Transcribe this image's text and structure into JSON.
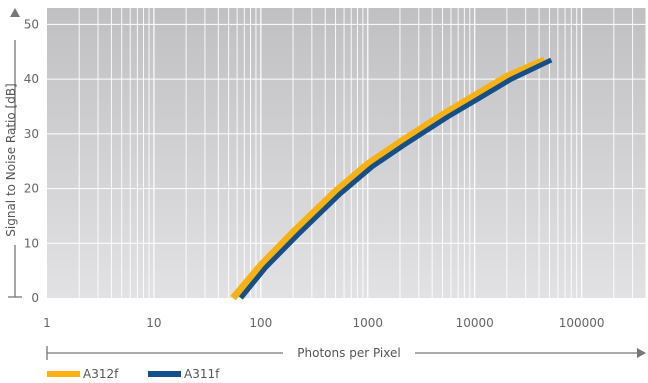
{
  "chart_data": {
    "type": "line",
    "title": "",
    "xlabel": "Photons per Pixel",
    "ylabel": "Signal to Noise Ratio [dB]",
    "x_scale": "log",
    "xlim": [
      1,
      400000
    ],
    "ylim": [
      0,
      53
    ],
    "grid": true,
    "legend_position": "bottom-left",
    "x_tick_labels": [
      "1",
      "10",
      "100",
      "1000",
      "10000",
      "100000"
    ],
    "x_ticks": [
      1,
      10,
      100,
      1000,
      10000,
      100000
    ],
    "y_ticks": [
      0,
      10,
      20,
      30,
      40,
      50
    ],
    "y_tick_labels": [
      "0",
      "10",
      "20",
      "30",
      "40",
      "50"
    ],
    "colors": {
      "plot_background": "#c9c9cb",
      "gridline": "#ffffff",
      "axis": "#777777"
    },
    "series": [
      {
        "name": "A312f",
        "color": "#f9b10f",
        "x": [
          55,
          100,
          200,
          500,
          1000,
          2000,
          5000,
          10000,
          20000,
          45000
        ],
        "y": [
          0,
          6,
          12,
          19.5,
          24.5,
          28.5,
          33.5,
          37,
          40.5,
          43.5
        ]
      },
      {
        "name": "A311f",
        "color": "#134f8a",
        "x": [
          65,
          110,
          220,
          550,
          1100,
          2200,
          5500,
          11000,
          22000,
          52000
        ],
        "y": [
          0,
          5.5,
          11.5,
          19,
          24,
          28,
          33,
          36.5,
          40,
          43.5
        ]
      }
    ]
  }
}
